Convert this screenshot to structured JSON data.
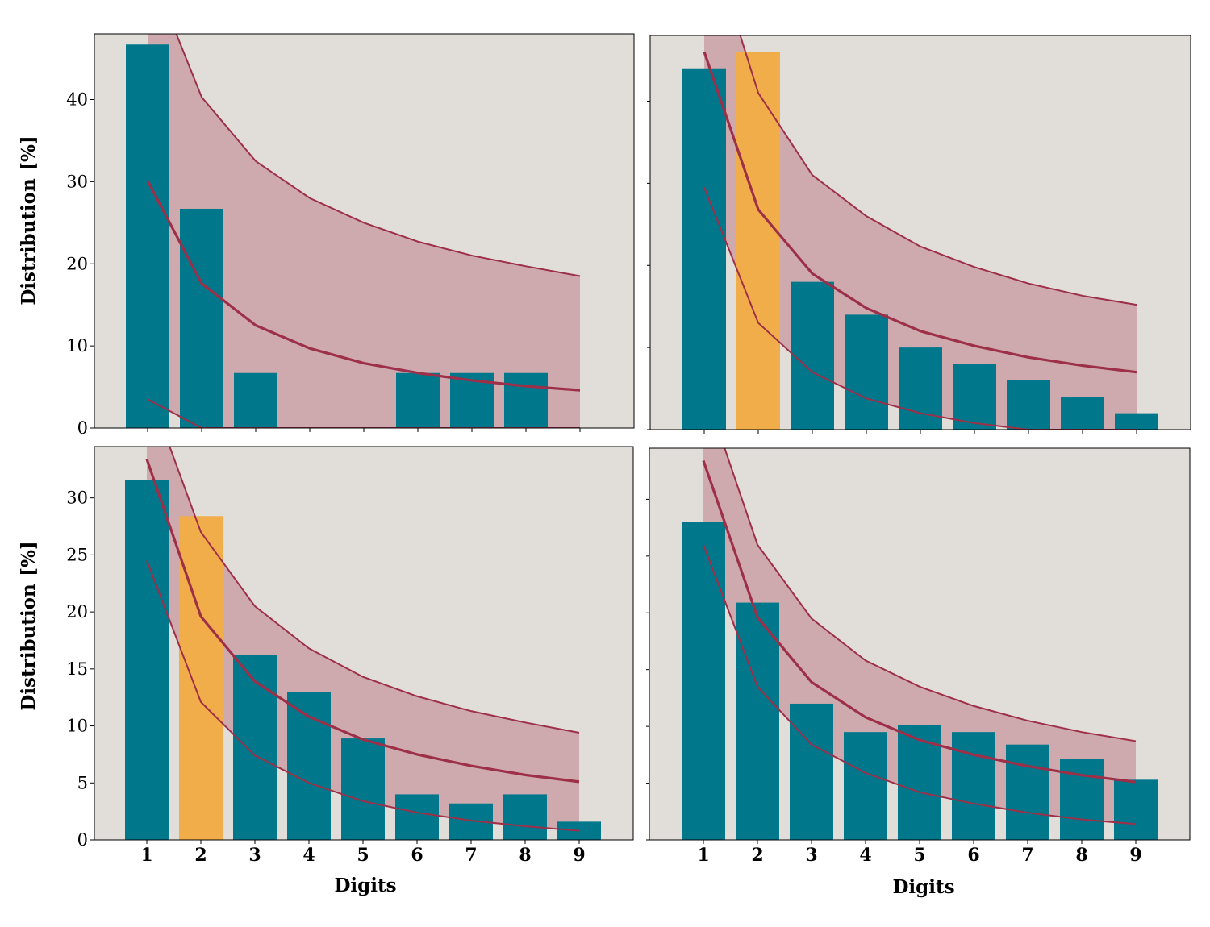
{
  "colors": {
    "background": "#e1ddd9",
    "bar": "#00778b",
    "highlight_bar": "#f0ad4a",
    "band_fill": "#b86a77",
    "line": "#9d2f48"
  },
  "labels": {
    "ylabel": "Distribution",
    "yunit": "[%]",
    "xlabel": "Digits"
  },
  "chart_data": [
    {
      "type": "bar",
      "panel": "top-left",
      "categories": [
        "1",
        "2",
        "3",
        "4",
        "5",
        "6",
        "7",
        "8",
        "9"
      ],
      "values": [
        46.7,
        26.7,
        6.7,
        0,
        0,
        6.7,
        6.7,
        6.7,
        0
      ],
      "highlight": [],
      "expected": [
        30.1,
        17.6,
        12.5,
        9.7,
        7.9,
        6.7,
        5.8,
        5.1,
        4.6
      ],
      "band_upper": [
        56.7,
        40.3,
        32.5,
        28.0,
        25.0,
        22.7,
        21.0,
        19.7,
        18.5
      ],
      "band_lower": [
        3.5,
        0,
        0,
        0,
        0,
        0,
        0,
        0,
        0
      ],
      "ylim": [
        0,
        48
      ],
      "yticks": [
        "0",
        "10",
        "20",
        "30",
        "40"
      ],
      "xlabel": "",
      "ylabel": "Distribution [%]"
    },
    {
      "type": "bar",
      "panel": "top-right",
      "categories": [
        "1",
        "2",
        "3",
        "4",
        "5",
        "6",
        "7",
        "8",
        "9"
      ],
      "values": [
        44.0,
        46.0,
        18.0,
        14.0,
        10.0,
        8.0,
        6.0,
        4.0,
        2.0
      ],
      "highlight": [
        1
      ],
      "expected": [
        46.0,
        26.8,
        19.0,
        14.8,
        12.0,
        10.2,
        8.8,
        7.8,
        7.0
      ],
      "band_upper": [
        62.0,
        41.0,
        31.0,
        26.0,
        22.3,
        19.8,
        17.8,
        16.3,
        15.2
      ],
      "band_lower": [
        29.5,
        13.0,
        7.0,
        3.8,
        2.0,
        0.8,
        0,
        0,
        0
      ],
      "ylim": [
        0,
        48
      ],
      "yticks": [],
      "xlabel": "",
      "ylabel": ""
    },
    {
      "type": "bar",
      "panel": "bottom-left",
      "categories": [
        "1",
        "2",
        "3",
        "4",
        "5",
        "6",
        "7",
        "8",
        "9"
      ],
      "values": [
        31.6,
        28.4,
        16.2,
        13.0,
        8.9,
        4.0,
        3.2,
        4.0,
        1.6
      ],
      "highlight": [
        1
      ],
      "expected": [
        33.4,
        19.6,
        13.9,
        10.8,
        8.8,
        7.5,
        6.5,
        5.7,
        5.1
      ],
      "band_upper": [
        40.0,
        27.0,
        20.5,
        16.8,
        14.3,
        12.6,
        11.3,
        10.3,
        9.4
      ],
      "band_lower": [
        24.5,
        12.1,
        7.4,
        5.0,
        3.4,
        2.4,
        1.7,
        1.2,
        0.8
      ],
      "ylim": [
        0,
        34.5
      ],
      "yticks": [
        "0",
        "5",
        "10",
        "15",
        "20",
        "25",
        "30"
      ],
      "xlabel": "Digits",
      "ylabel": "Distribution [%]"
    },
    {
      "type": "bar",
      "panel": "bottom-right",
      "categories": [
        "1",
        "2",
        "3",
        "4",
        "5",
        "6",
        "7",
        "8",
        "9"
      ],
      "values": [
        28.0,
        20.9,
        12.0,
        9.5,
        10.1,
        9.5,
        8.4,
        7.1,
        5.3
      ],
      "highlight": [],
      "expected": [
        33.4,
        19.6,
        13.9,
        10.8,
        8.8,
        7.5,
        6.5,
        5.7,
        5.1
      ],
      "band_upper": [
        40.0,
        26.0,
        19.5,
        15.8,
        13.5,
        11.8,
        10.5,
        9.5,
        8.7
      ],
      "band_lower": [
        26.0,
        13.5,
        8.4,
        5.9,
        4.2,
        3.2,
        2.4,
        1.8,
        1.4
      ],
      "ylim": [
        0,
        34.5
      ],
      "yticks": [],
      "xlabel": "Digits",
      "ylabel": ""
    }
  ]
}
